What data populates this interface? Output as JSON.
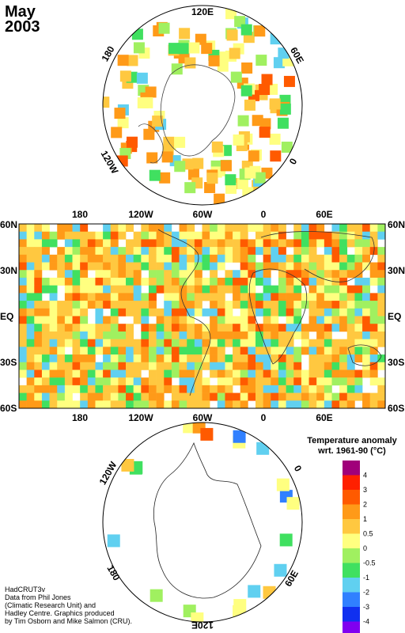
{
  "title": {
    "month": "May",
    "year": "2003"
  },
  "north_polar": {
    "labels": [
      "120E",
      "60E",
      "0",
      "120W",
      "180"
    ]
  },
  "world_map": {
    "lon_labels": [
      "180",
      "120W",
      "60W",
      "0",
      "60E"
    ],
    "lat_labels": [
      "60N",
      "30N",
      "EQ",
      "30S",
      "60S"
    ]
  },
  "south_polar": {
    "labels": [
      "120W",
      "0",
      "60E",
      "120E",
      "180"
    ]
  },
  "legend": {
    "title_line1": "Temperature anomaly",
    "title_line2": "wrt. 1961-90  (°C)",
    "ticks": [
      "4",
      "3",
      "2",
      "1",
      "0.5",
      "0",
      "-0.5",
      "-1",
      "-2",
      "-3",
      "-4"
    ],
    "colors": [
      "#a0007a",
      "#ff2000",
      "#ff5a00",
      "#ff9a18",
      "#ffc840",
      "#ffff80",
      "#a0f060",
      "#40e060",
      "#60d0f0",
      "#3080ff",
      "#1030f0",
      "#8000f0"
    ]
  },
  "credits": [
    "HadCRUT3v",
    "Data from Phil Jones",
    "(Climatic Research Unit) and",
    "Hadley Centre.  Graphics produced",
    "by Tim Osborn and Mike Salmon (CRU)."
  ]
}
